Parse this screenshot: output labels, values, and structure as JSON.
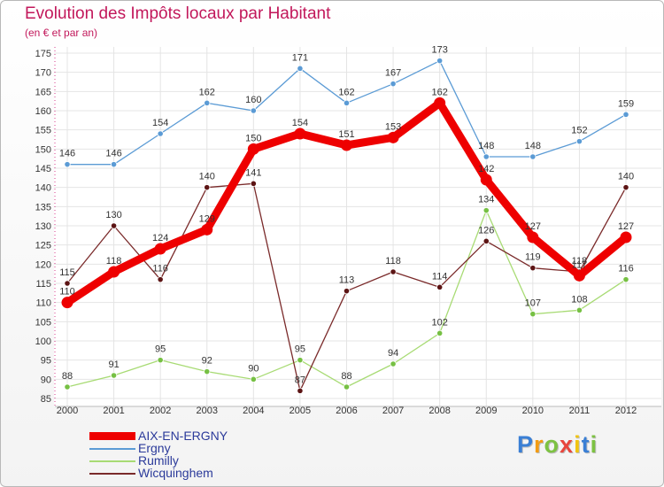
{
  "header": {
    "title": "Evolution des Impôts locaux par Habitant",
    "subtitle": "(en € et par an)"
  },
  "chart_data": {
    "type": "line",
    "title": "Evolution des Impôts locaux par Habitant",
    "subtitle": "(en € et par an)",
    "xlabel": "",
    "ylabel": "",
    "x": [
      "2000",
      "2001",
      "2002",
      "2003",
      "2004",
      "2005",
      "2006",
      "2007",
      "2008",
      "2009",
      "2010",
      "2011",
      "2012"
    ],
    "ylim": [
      85,
      175
    ],
    "yticks": [
      85,
      90,
      95,
      100,
      105,
      110,
      115,
      120,
      125,
      130,
      135,
      140,
      145,
      150,
      155,
      160,
      165,
      170,
      175
    ],
    "grid": true,
    "legend_position": "bottom-left",
    "series": [
      {
        "name": "Ergny",
        "color": "#5b9bd5",
        "values": [
          146,
          146,
          154,
          162,
          160,
          171,
          162,
          167,
          173,
          148,
          148,
          152,
          159
        ],
        "dot": "#5b9bd5"
      },
      {
        "name": "Rumilly",
        "color": "#a8db74",
        "values": [
          88,
          91,
          95,
          92,
          90,
          95,
          88,
          94,
          102,
          134,
          107,
          108,
          116
        ],
        "dot": "#76c043"
      },
      {
        "name": "Wicquinghem",
        "color": "#7a2a2a",
        "values": [
          115,
          130,
          116,
          140,
          141,
          87,
          113,
          118,
          114,
          126,
          119,
          118,
          140
        ],
        "dot": "#5c1414"
      },
      {
        "name": "AIX-EN-ERGNY",
        "color": "#ee0000",
        "values": [
          110,
          118,
          124,
          129,
          150,
          154,
          151,
          153,
          162,
          142,
          127,
          117,
          127
        ],
        "dot": "#ee0000",
        "highlight": true
      }
    ]
  },
  "legend": {
    "items": [
      {
        "label": "AIX-EN-ERGNY",
        "color": "#ee0000"
      },
      {
        "label": "Ergny",
        "color": "#5b9bd5"
      },
      {
        "label": "Rumilly",
        "color": "#a8db74"
      },
      {
        "label": "Wicquinghem",
        "color": "#7a2a2a"
      }
    ]
  },
  "logo": {
    "letters": [
      "P",
      "r",
      "o",
      "x",
      "i",
      "t",
      "i"
    ],
    "colors": [
      "#3a7fd5",
      "#f39c12",
      "#7dc242",
      "#e8453c",
      "#f1c40f",
      "#3a7fd5",
      "#7dc242"
    ]
  }
}
